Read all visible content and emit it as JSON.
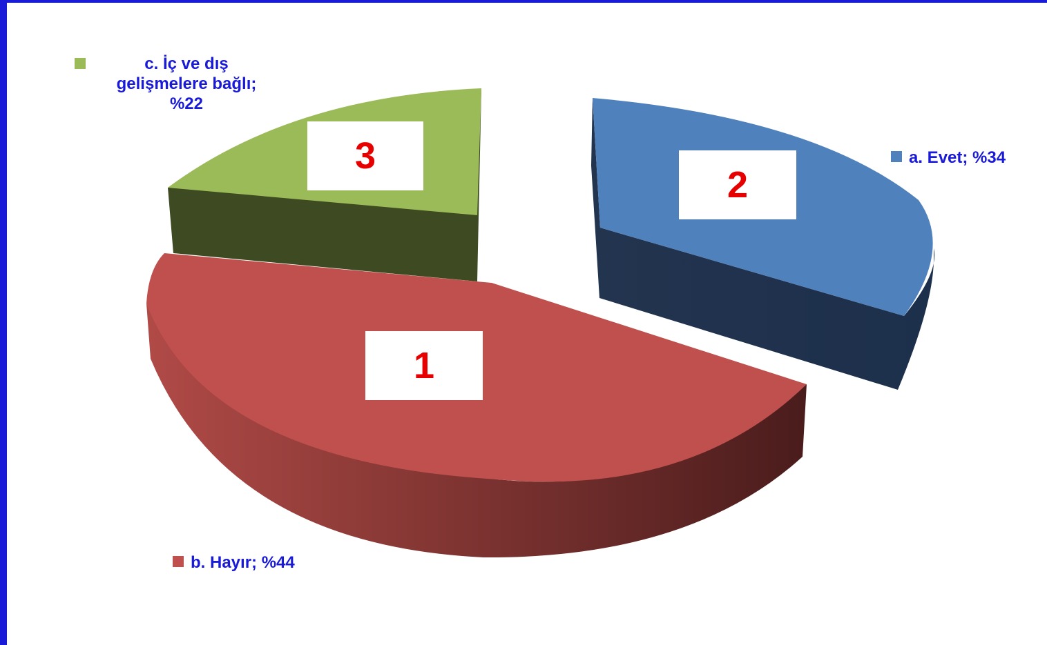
{
  "chart_data": {
    "type": "pie",
    "style": "3d-exploded",
    "slices": [
      {
        "name": "a. Evet",
        "percent_label": "%34",
        "value": 34,
        "color": "#4f81bd",
        "rank_label": "2"
      },
      {
        "name": "b. Hayır",
        "percent_label": "%44",
        "value": 44,
        "color": "#c0504d",
        "rank_label": "1"
      },
      {
        "name": "c. İç ve dış gelişmelere bağlı",
        "percent_label": "%22",
        "value": 22,
        "color": "#9bbb59",
        "rank_label": "3"
      }
    ],
    "labels": {
      "a": "a. Evet; %34",
      "b": "b. Hayır; %44",
      "c_line1": "c. İç ve dış",
      "c_line2": "gelişmelere bağlı;",
      "c_line3": "%22"
    }
  },
  "colors": {
    "frame": "#1a1ad9",
    "label_text": "#1a1ad9",
    "rank_text": "#e60000"
  }
}
